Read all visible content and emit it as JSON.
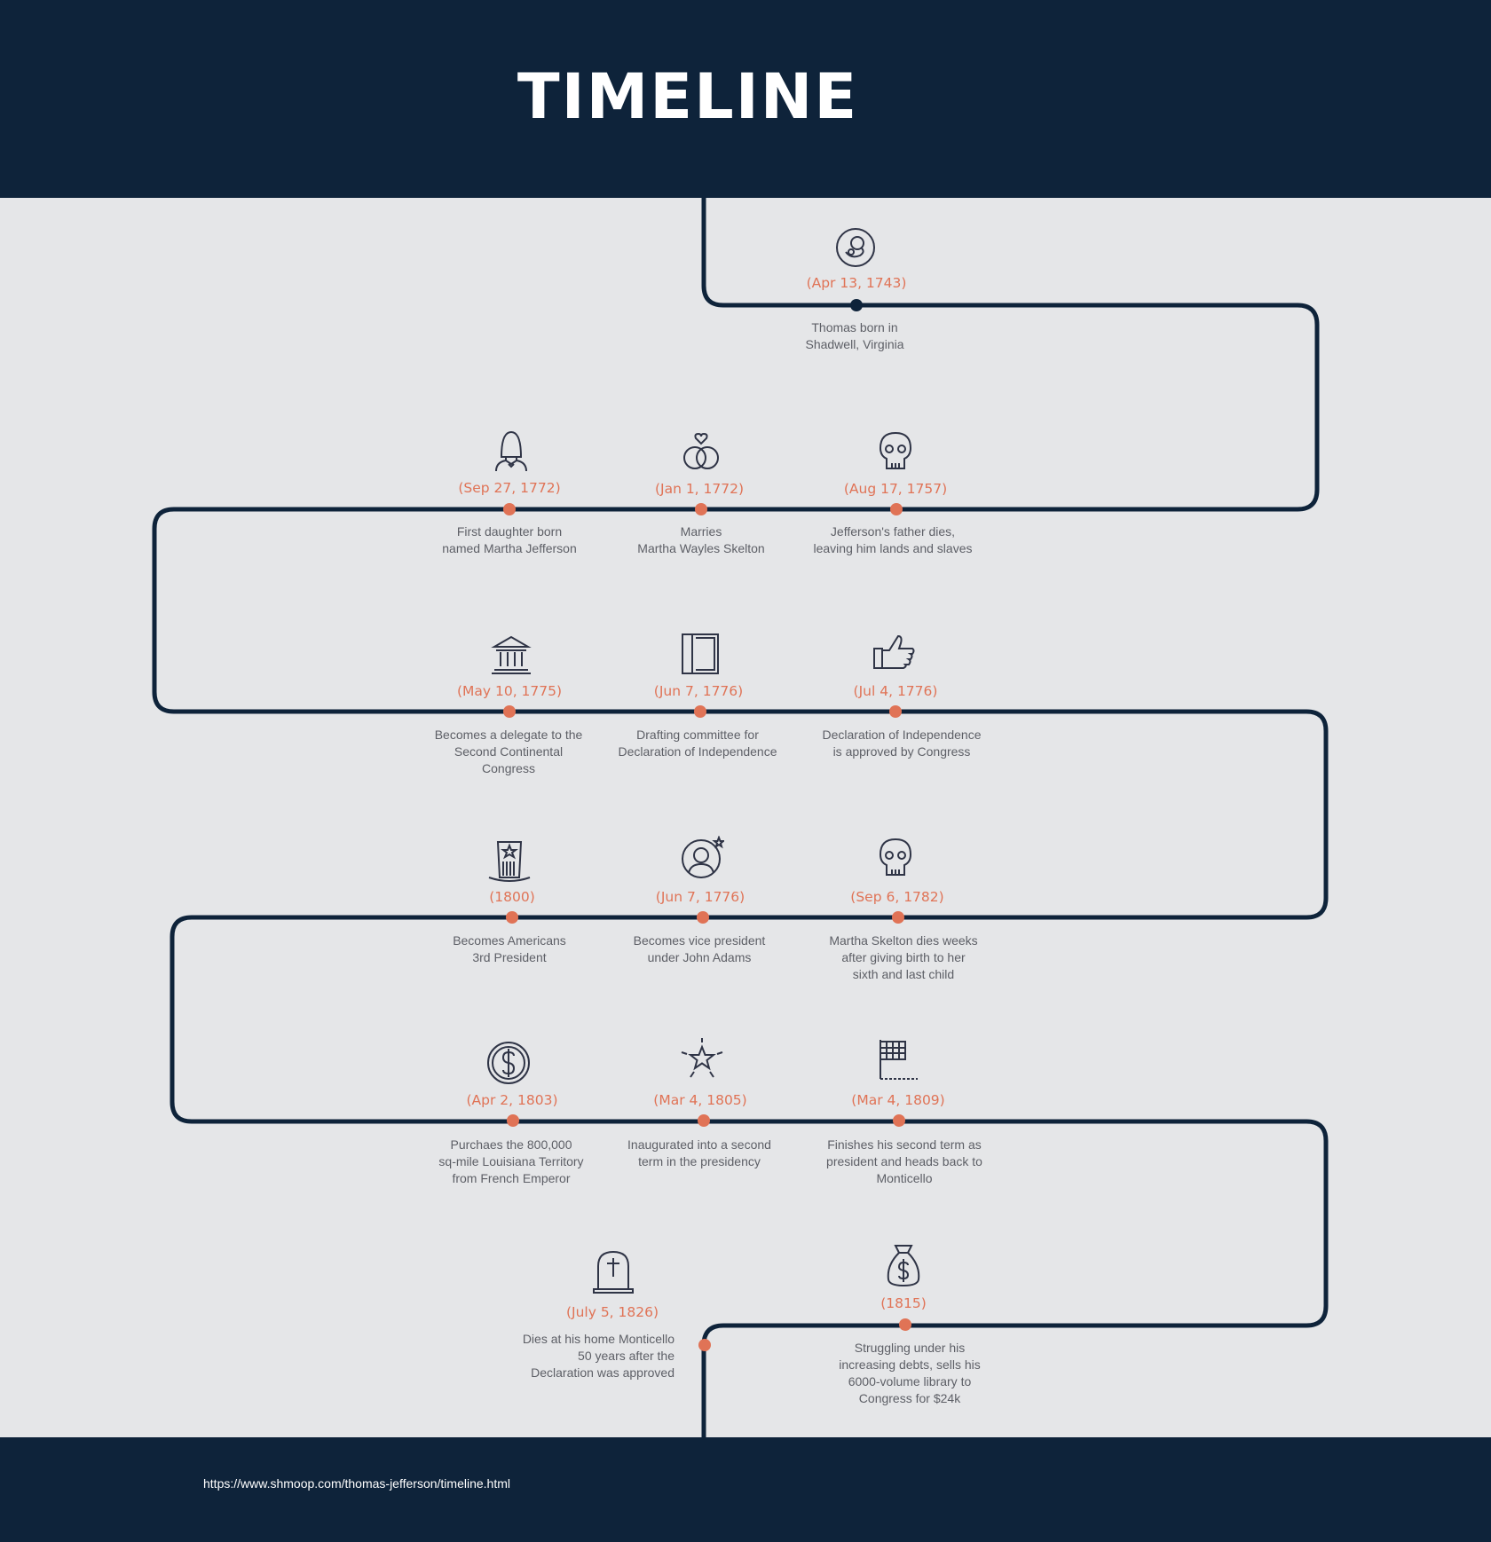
{
  "title": "TIMELINE",
  "footer_url": "https://www.shmoop.com/thomas-jefferson/timeline.html",
  "colors": {
    "navy": "#0e233a",
    "accent": "#e07356",
    "background": "#e5e6e8",
    "text": "#5d5f66"
  },
  "events": [
    {
      "date": "(Apr 13, 1743)",
      "desc": "Thomas born in\nShadwell, Virginia",
      "icon": "baby-icon"
    },
    {
      "date": "(Aug 17, 1757)",
      "desc": "Jefferson's father dies,\nleaving him lands and slaves",
      "icon": "skull-icon"
    },
    {
      "date": "(Jan 1, 1772)",
      "desc": "Marries\nMartha Wayles Skelton",
      "icon": "rings-icon"
    },
    {
      "date": "(Sep 27, 1772)",
      "desc": "First daughter born\nnamed Martha Jefferson",
      "icon": "woman-icon"
    },
    {
      "date": "(May 10, 1775)",
      "desc": "Becomes a delegate to the\nSecond Continental\nCongress",
      "icon": "government-building-icon"
    },
    {
      "date": "(Jun 7, 1776)",
      "desc": "Drafting committee for\nDeclaration of Independence",
      "icon": "book-icon"
    },
    {
      "date": "(Jul 4, 1776)",
      "desc": "Declaration of Independence\nis approved by Congress",
      "icon": "thumbs-up-icon"
    },
    {
      "date": "(Sep 6, 1782)",
      "desc": "Martha Skelton dies weeks\nafter giving birth to her\nsixth and last child",
      "icon": "skull-icon"
    },
    {
      "date": "(Jun 7, 1776)",
      "desc": "Becomes vice president\nunder John Adams",
      "icon": "person-star-icon"
    },
    {
      "date": "(1800)",
      "desc": "Becomes Americans\n3rd President",
      "icon": "uncle-sam-hat-icon"
    },
    {
      "date": "(Apr 2, 1803)",
      "desc": "Purchaes the 800,000\nsq-mile Louisiana Territory\nfrom French Emperor",
      "icon": "dollar-coin-icon"
    },
    {
      "date": "(Mar 4, 1805)",
      "desc": "Inaugurated into a second\nterm in the presidency",
      "icon": "star-burst-icon"
    },
    {
      "date": "(Mar 4, 1809)",
      "desc": "Finishes his second term as\npresident and heads back to\nMonticello",
      "icon": "flag-icon"
    },
    {
      "date": "(1815)",
      "desc": "Struggling under his\nincreasing debts, sells his\n6000-volume library to\nCongress for $24k",
      "icon": "money-bag-icon"
    },
    {
      "date": "(July 5, 1826)",
      "desc": "Dies at his home Monticello\n50 years after the\nDeclaration was approved",
      "icon": "tombstone-icon"
    }
  ]
}
